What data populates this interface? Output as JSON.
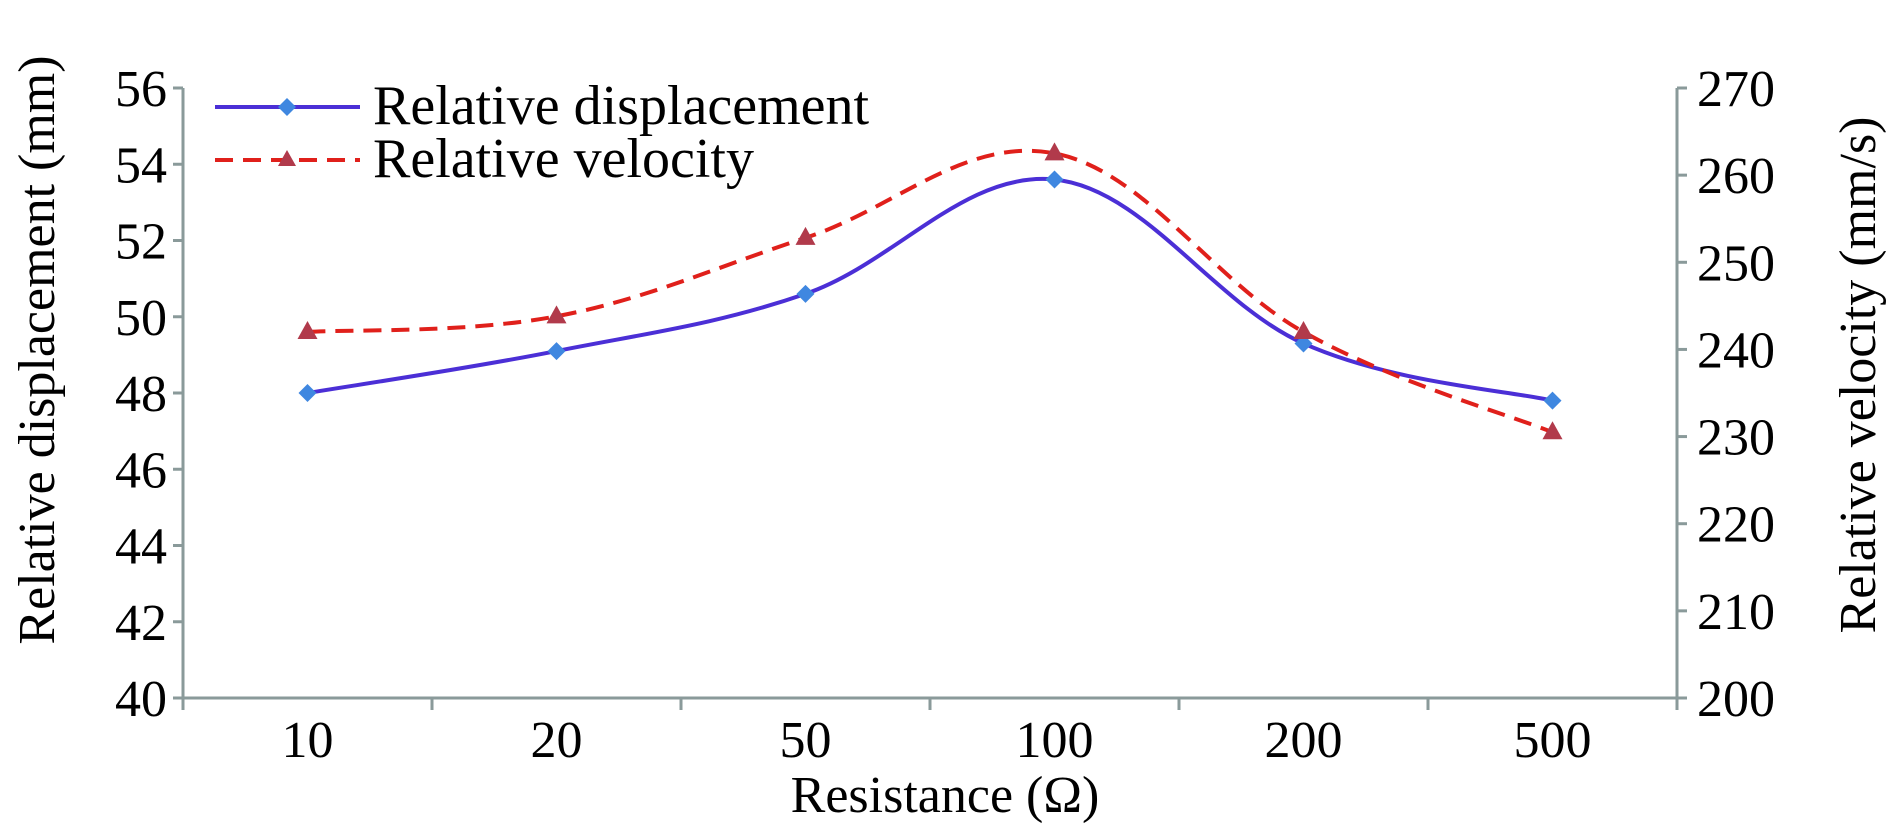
{
  "chart_data": {
    "type": "line",
    "categories": [
      "10",
      "20",
      "50",
      "100",
      "200",
      "500"
    ],
    "xlabel": "Resistance (Ω)",
    "y_left": {
      "label": "Relative displacement (mm)",
      "lim": [
        40,
        56
      ],
      "ticks": [
        40,
        42,
        44,
        46,
        48,
        50,
        52,
        54,
        56
      ]
    },
    "y_right": {
      "label": "Relative velocity (mm/s)",
      "lim": [
        200,
        270
      ],
      "ticks": [
        200,
        210,
        220,
        230,
        240,
        250,
        260,
        270
      ]
    },
    "series": [
      {
        "name": "Relative displacement",
        "axis": "left",
        "color": "#4b2fd6",
        "marker_color": "#3f87e0",
        "marker": "diamond",
        "line": "solid",
        "values": [
          48.0,
          49.1,
          50.6,
          53.6,
          49.3,
          47.8
        ]
      },
      {
        "name": "Relative velocity",
        "axis": "right",
        "color": "#e0201b",
        "marker_color": "#b13a4b",
        "marker": "triangle",
        "line": "dashed",
        "values": [
          242.0,
          243.8,
          252.8,
          262.5,
          242.0,
          230.5
        ]
      }
    ],
    "legend_position": "top-left",
    "grid": false
  }
}
